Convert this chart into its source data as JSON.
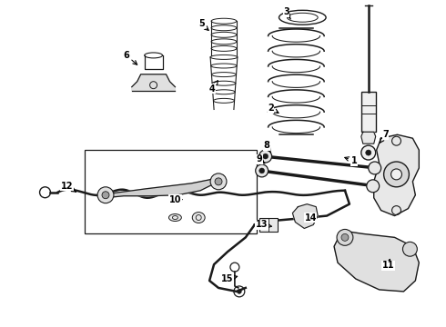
{
  "bg_color": "#ffffff",
  "line_color": "#1a1a1a",
  "lw_main": 1.0,
  "lw_thin": 0.6,
  "lw_thick": 1.5,
  "label_fs": 7,
  "figsize": [
    4.9,
    3.6
  ],
  "dpi": 100,
  "labels": [
    [
      "1",
      390,
      177,
      376,
      172,
      "right"
    ],
    [
      "2",
      298,
      119,
      310,
      126,
      "right"
    ],
    [
      "3",
      315,
      12,
      320,
      20,
      "right"
    ],
    [
      "4",
      233,
      97,
      240,
      87,
      "right"
    ],
    [
      "5",
      221,
      25,
      232,
      35,
      "right"
    ],
    [
      "6",
      138,
      60,
      153,
      73,
      "right"
    ],
    [
      "7",
      425,
      148,
      418,
      158,
      "right"
    ],
    [
      "8",
      293,
      160,
      298,
      168,
      "right"
    ],
    [
      "9",
      285,
      175,
      294,
      182,
      "right"
    ],
    [
      "10",
      192,
      220,
      200,
      220,
      "right"
    ],
    [
      "11",
      428,
      293,
      430,
      285,
      "right"
    ],
    [
      "12",
      72,
      205,
      83,
      212,
      "right"
    ],
    [
      "13",
      288,
      248,
      300,
      250,
      "right"
    ],
    [
      "14",
      342,
      240,
      335,
      240,
      "right"
    ],
    [
      "15",
      250,
      308,
      262,
      305,
      "right"
    ]
  ]
}
